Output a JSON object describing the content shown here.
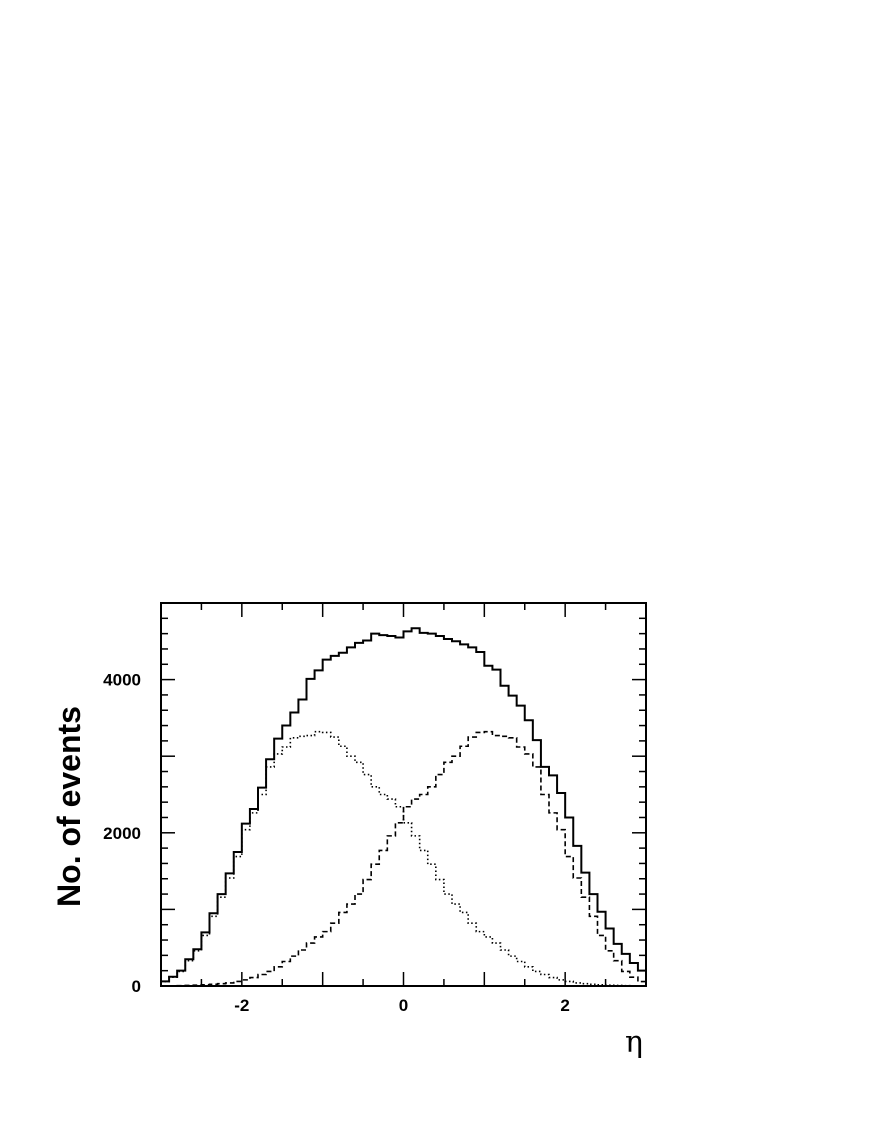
{
  "chart_data": {
    "type": "histogram",
    "title": "",
    "xlabel": "η",
    "ylabel": "No. of events",
    "xlim": [
      -3,
      3
    ],
    "ylim": [
      0,
      5000
    ],
    "grid": false,
    "legend": "none",
    "bin_width": 0.1,
    "bin_start": -3.0,
    "x_ticks": [
      -2,
      0,
      2
    ],
    "x_tick_labels": [
      "-2",
      "0",
      "2"
    ],
    "y_ticks": [
      0,
      2000,
      4000
    ],
    "y_tick_labels": [
      "0",
      "2000",
      "4000"
    ],
    "series": [
      {
        "style": "solid",
        "values": [
          60,
          120,
          200,
          350,
          480,
          700,
          950,
          1200,
          1470,
          1750,
          2120,
          2310,
          2590,
          2960,
          3230,
          3400,
          3570,
          3740,
          4010,
          4120,
          4260,
          4310,
          4350,
          4420,
          4480,
          4510,
          4600,
          4580,
          4570,
          4550,
          4630,
          4670,
          4610,
          4600,
          4570,
          4530,
          4500,
          4460,
          4420,
          4360,
          4180,
          4130,
          3920,
          3790,
          3660,
          3470,
          3210,
          2860,
          2750,
          2520,
          2200,
          1830,
          1480,
          1200,
          970,
          750,
          550,
          420,
          300,
          200
        ]
      },
      {
        "style": "dotted",
        "values": [
          58,
          115,
          190,
          330,
          460,
          660,
          910,
          1160,
          1410,
          1690,
          2040,
          2260,
          2500,
          2860,
          3030,
          3120,
          3240,
          3260,
          3270,
          3320,
          3310,
          3250,
          3130,
          3000,
          2920,
          2760,
          2600,
          2500,
          2440,
          2340,
          2130,
          1960,
          1770,
          1590,
          1390,
          1200,
          1070,
          960,
          820,
          710,
          640,
          560,
          470,
          390,
          320,
          250,
          190,
          150,
          110,
          80,
          60,
          40,
          30,
          22,
          15,
          10,
          7,
          5,
          3,
          2
        ]
      },
      {
        "style": "dashed",
        "values": [
          2,
          3,
          5,
          7,
          10,
          15,
          22,
          30,
          40,
          60,
          80,
          110,
          150,
          190,
          250,
          320,
          390,
          470,
          560,
          640,
          710,
          820,
          960,
          1070,
          1200,
          1390,
          1590,
          1770,
          1960,
          2130,
          2340,
          2440,
          2500,
          2600,
          2760,
          2920,
          3000,
          3130,
          3250,
          3310,
          3320,
          3270,
          3260,
          3240,
          3120,
          3030,
          2860,
          2500,
          2260,
          2040,
          1690,
          1410,
          1160,
          910,
          660,
          460,
          330,
          190,
          115,
          58
        ]
      }
    ]
  }
}
